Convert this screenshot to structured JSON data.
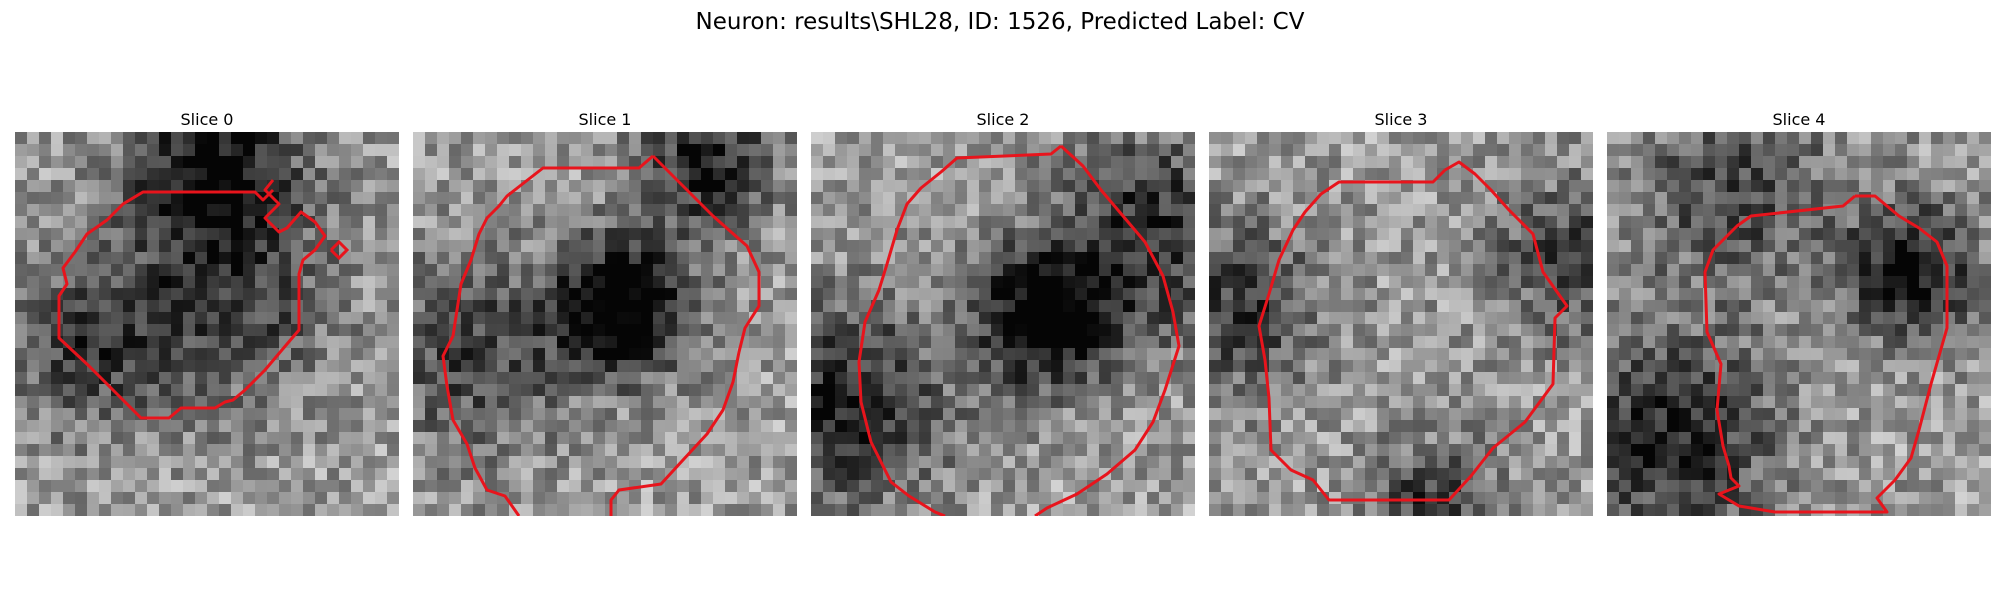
{
  "figure": {
    "title": "Neuron: results\\SHL28, ID: 1526, Predicted Label: CV"
  },
  "slices": [
    {
      "title": "Slice 0"
    },
    {
      "title": "Slice 1"
    },
    {
      "title": "Slice 2"
    },
    {
      "title": "Slice 3"
    },
    {
      "title": "Slice 4"
    }
  ],
  "colors": {
    "contour": "#e8141c",
    "background": "#ffffff"
  }
}
